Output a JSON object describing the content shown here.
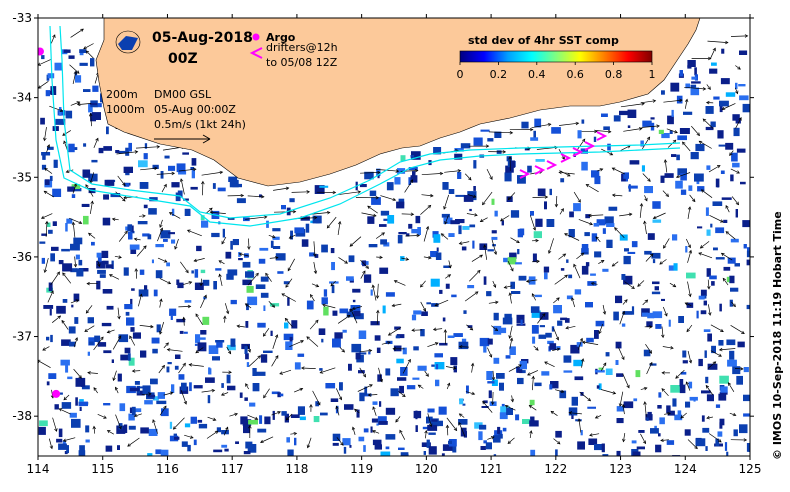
{
  "title": {
    "date": "05-Aug-2018",
    "time": "00Z"
  },
  "legend": {
    "argo_label": "Argo",
    "drifters_label": "drifters@12h",
    "drifters_range": "to 05/08 12Z",
    "argo_color": "#ff00ff",
    "drifter_color": "#ff00ff"
  },
  "contour_key": {
    "line1": "200m",
    "line2": "1000m",
    "product": "DM00 GSL",
    "valid": "05-Aug 00:00Z",
    "scale": "0.5m/s (1kt 24h)"
  },
  "colorbar": {
    "title": "std dev of 4hr SST comp",
    "ticks": [
      "0",
      "0.2",
      "0.4",
      "0.6",
      "0.8",
      "1"
    ],
    "stops": [
      "#000080",
      "#0000ff",
      "#00a0ff",
      "#00ffff",
      "#80ff80",
      "#ffff00",
      "#ff8000",
      "#ff0000",
      "#800000"
    ]
  },
  "credit": "© IMOS 10-Sep-2018 11:19 Hobart Time",
  "axes": {
    "x_ticks": [
      "114",
      "115",
      "116",
      "117",
      "118",
      "119",
      "120",
      "121",
      "122",
      "123",
      "124",
      "125"
    ],
    "y_ticks": [
      "-33",
      "-34",
      "-35",
      "-36",
      "-37",
      "-38"
    ],
    "xlim": [
      114,
      125
    ],
    "ylim": [
      -38.5,
      -33
    ]
  },
  "colors": {
    "land": "#fcc99a",
    "isobath": "#00e5ee",
    "ocean": "#ffffff"
  },
  "argo_floats": [
    {
      "lon": 114.28,
      "lat": -37.72
    },
    {
      "lon": 114.03,
      "lat": -33.42
    }
  ]
}
